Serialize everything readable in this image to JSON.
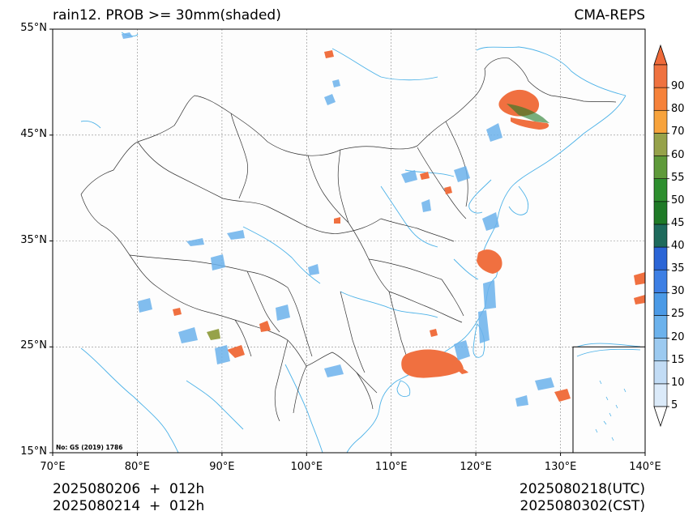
{
  "title": {
    "left": "rain12. PROB >= 30mm(shaded)",
    "right": "CMA-REPS"
  },
  "axes": {
    "lat_ticks": [
      "55°N",
      "45°N",
      "35°N",
      "25°N",
      "15°N"
    ],
    "lon_ticks": [
      "70°E",
      "80°E",
      "90°E",
      "100°E",
      "110°E",
      "120°E",
      "130°E",
      "140°E"
    ],
    "lat_range": [
      15,
      55
    ],
    "lon_range": [
      70,
      140
    ],
    "grid": true
  },
  "map_note": "No: GS (2019) 1786",
  "footer": {
    "left_line1": "2025080206  +  012h",
    "left_line2": "2025080214  +  012h",
    "right_line1": "2025080218(UTC)",
    "right_line2": "2025080302(CST)"
  },
  "colorbar": {
    "levels": [
      "5",
      "10",
      "15",
      "20",
      "25",
      "30",
      "35",
      "40",
      "45",
      "50",
      "55",
      "60",
      "70",
      "80",
      "90"
    ],
    "colors": [
      "#dbeaf9",
      "#c2dcf5",
      "#9ccaf0",
      "#6cb2ec",
      "#4b9ae6",
      "#3d7fe4",
      "#2b65d6",
      "#1e6a5c",
      "#1f7a27",
      "#2e8f2f",
      "#5f9a3a",
      "#96a24a",
      "#f7a33c",
      "#f6823a",
      "#ef7240"
    ],
    "extend": "both",
    "over_color": "#ef6a3a",
    "under_color": "#ffffff"
  },
  "colors": {
    "coast": "#4db2e8",
    "border": "#333333",
    "grid": "#888888",
    "high_prob": "#f07040"
  }
}
